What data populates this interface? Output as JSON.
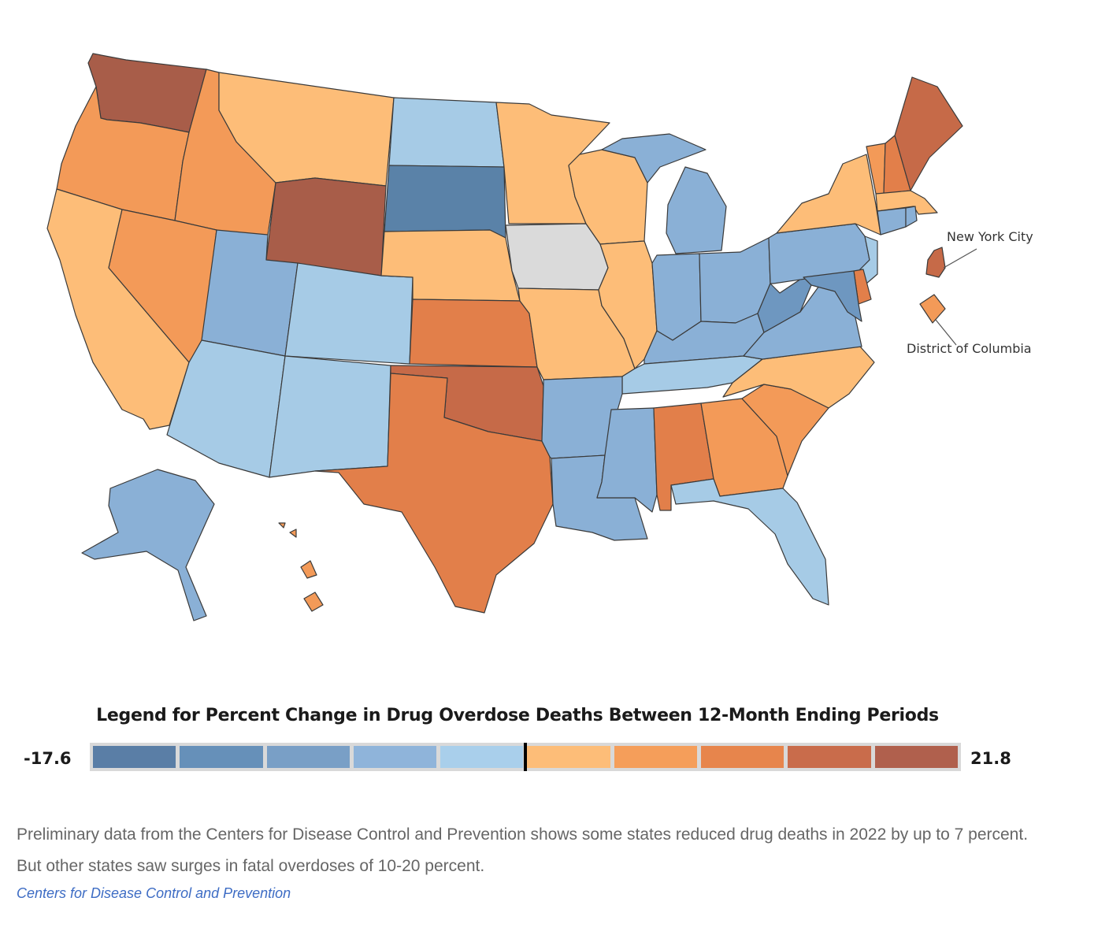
{
  "map": {
    "callouts": {
      "nyc": "New York City",
      "dc": "District of Columbia"
    },
    "no_data_color": "#dadada",
    "state_fills": {
      "WA": "#a85d49",
      "OR": "#f39a58",
      "CA": "#fdbd78",
      "ID": "#f39a58",
      "NV": "#f39a58",
      "MT": "#fdbd78",
      "WY": "#a85d49",
      "UT": "#8ab0d6",
      "AZ": "#a6cbe6",
      "CO": "#a6cbe6",
      "NM": "#a6cbe6",
      "ND": "#a6cbe6",
      "SD": "#5a82a8",
      "NE": "#fdbd78",
      "KS": "#e27f4a",
      "OK": "#c66a48",
      "TX": "#e27f4a",
      "MN": "#fdbd78",
      "IA": "#dadada",
      "MO": "#fdbd78",
      "AR": "#8ab0d6",
      "LA": "#8ab0d6",
      "WI": "#fdbd78",
      "IL": "#fdbd78",
      "MI": "#8ab0d6",
      "IN": "#8ab0d6",
      "OH": "#8ab0d6",
      "KY": "#8ab0d6",
      "TN": "#a6cbe6",
      "MS": "#8ab0d6",
      "AL": "#e27f4a",
      "GA": "#f39a58",
      "FL": "#a6cbe6",
      "SC": "#f39a58",
      "NC": "#fdbd78",
      "VA": "#8ab0d6",
      "WV": "#6e97c0",
      "PA": "#8ab0d6",
      "NY": "#fdbd78",
      "VT": "#f39a58",
      "NH": "#e27f4a",
      "ME": "#c66a48",
      "MA": "#fdbd78",
      "CT": "#8ab0d6",
      "RI": "#8ab0d6",
      "NJ": "#a6cbe6",
      "DE": "#e27f4a",
      "MD": "#6e97c0",
      "AK": "#8ab0d6",
      "HI": "#f39a58",
      "NYC": "#c66a48",
      "DC": "#f39a58"
    }
  },
  "legend": {
    "title": "Legend for Percent Change in Drug Overdose Deaths Between 12-Month Ending Periods",
    "min": "-17.6",
    "max": "21.8",
    "bins": [
      "#5a7ea6",
      "#6690b9",
      "#799fc6",
      "#8fb4da",
      "#a9cfeb",
      "#fdbd78",
      "#f59e5a",
      "#e7854c",
      "#c96c4b",
      "#b0604d"
    ],
    "midpoint_value": 0
  },
  "caption": "Preliminary data from the Centers for Disease Control and Prevention shows some states reduced drug deaths in 2022 by up to 7 percent. But other states saw surges in fatal overdoses of 10-20 percent.",
  "source": "Centers for Disease Control and Prevention"
}
